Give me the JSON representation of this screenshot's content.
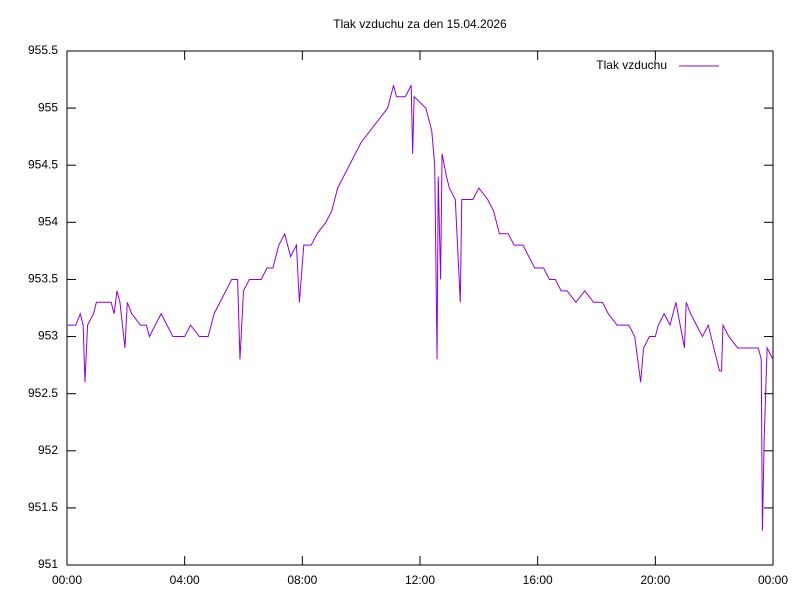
{
  "chart_data": {
    "type": "line",
    "title": "Tlak vzduchu za den 15.04.2026",
    "x": [
      0,
      0.3,
      0.45,
      0.55,
      0.61,
      0.7,
      0.9,
      1.0,
      1.5,
      1.6,
      1.7,
      1.8,
      1.97,
      2.05,
      2.2,
      2.5,
      2.7,
      2.8,
      3.0,
      3.2,
      3.4,
      3.6,
      4.0,
      4.2,
      4.5,
      4.8,
      5.0,
      5.2,
      5.4,
      5.6,
      5.8,
      5.88,
      6.0,
      6.2,
      6.6,
      6.8,
      7.0,
      7.2,
      7.4,
      7.6,
      7.8,
      7.9,
      8.05,
      8.3,
      8.5,
      8.8,
      9.0,
      9.2,
      9.4,
      9.6,
      9.8,
      10.0,
      10.3,
      10.6,
      10.9,
      11.0,
      11.1,
      11.2,
      11.5,
      11.7,
      11.75,
      11.8,
      12.2,
      12.4,
      12.5,
      12.58,
      12.62,
      12.7,
      12.75,
      12.9,
      13.0,
      13.2,
      13.37,
      13.42,
      13.8,
      14.0,
      14.3,
      14.5,
      14.7,
      15.0,
      15.2,
      15.5,
      15.7,
      15.9,
      16.2,
      16.4,
      16.6,
      16.8,
      17.0,
      17.3,
      17.6,
      17.9,
      18.2,
      18.4,
      18.7,
      19.1,
      19.3,
      19.5,
      19.6,
      19.8,
      20.0,
      20.1,
      20.3,
      20.5,
      20.7,
      20.99,
      21.05,
      21.2,
      21.4,
      21.6,
      21.8,
      22.18,
      22.25,
      22.3,
      22.5,
      22.8,
      23.5,
      23.6,
      23.64,
      23.7,
      23.8,
      24.0
    ],
    "series": [
      {
        "name": "Tlak vzduchu",
        "color": "#9400d3",
        "values": [
          953.1,
          953.1,
          953.2,
          953.1,
          952.6,
          953.1,
          953.2,
          953.3,
          953.3,
          953.2,
          953.4,
          953.3,
          952.9,
          953.3,
          953.2,
          953.1,
          953.1,
          953.0,
          953.1,
          953.2,
          953.1,
          953.0,
          953.0,
          953.1,
          953.0,
          953.0,
          953.2,
          953.3,
          953.4,
          953.5,
          953.5,
          952.8,
          953.4,
          953.5,
          953.5,
          953.6,
          953.6,
          953.8,
          953.9,
          953.7,
          953.8,
          953.3,
          953.8,
          953.8,
          953.9,
          954.0,
          954.1,
          954.3,
          954.4,
          954.5,
          954.6,
          954.7,
          954.8,
          954.9,
          955.0,
          955.1,
          955.2,
          955.1,
          955.1,
          955.2,
          954.6,
          955.1,
          955.0,
          954.8,
          954.5,
          952.8,
          954.4,
          953.5,
          954.6,
          954.4,
          954.3,
          954.2,
          953.3,
          954.2,
          954.2,
          954.3,
          954.2,
          954.1,
          953.9,
          953.9,
          953.8,
          953.8,
          953.7,
          953.6,
          953.6,
          953.5,
          953.5,
          953.4,
          953.4,
          953.3,
          953.4,
          953.3,
          953.3,
          953.2,
          953.1,
          953.1,
          953.0,
          952.6,
          952.9,
          953.0,
          953.0,
          953.1,
          953.2,
          953.1,
          953.3,
          952.9,
          953.3,
          953.2,
          953.1,
          953.0,
          953.1,
          952.7,
          952.7,
          953.1,
          953.0,
          952.9,
          952.9,
          952.8,
          951.3,
          952.1,
          952.9,
          952.8
        ]
      }
    ],
    "xlim": [
      0,
      24
    ],
    "xticks": [
      {
        "value": 0,
        "label": "00:00"
      },
      {
        "value": 4,
        "label": "04:00"
      },
      {
        "value": 8,
        "label": "08:00"
      },
      {
        "value": 12,
        "label": "12:00"
      },
      {
        "value": 16,
        "label": "16:00"
      },
      {
        "value": 20,
        "label": "20:00"
      },
      {
        "value": 24,
        "label": "00:00"
      }
    ],
    "ylim": [
      951,
      955.5
    ],
    "yticks": [
      951,
      951.5,
      952,
      952.5,
      953,
      953.5,
      954,
      954.5,
      955,
      955.5
    ],
    "legend": "top-right",
    "grid": false
  }
}
